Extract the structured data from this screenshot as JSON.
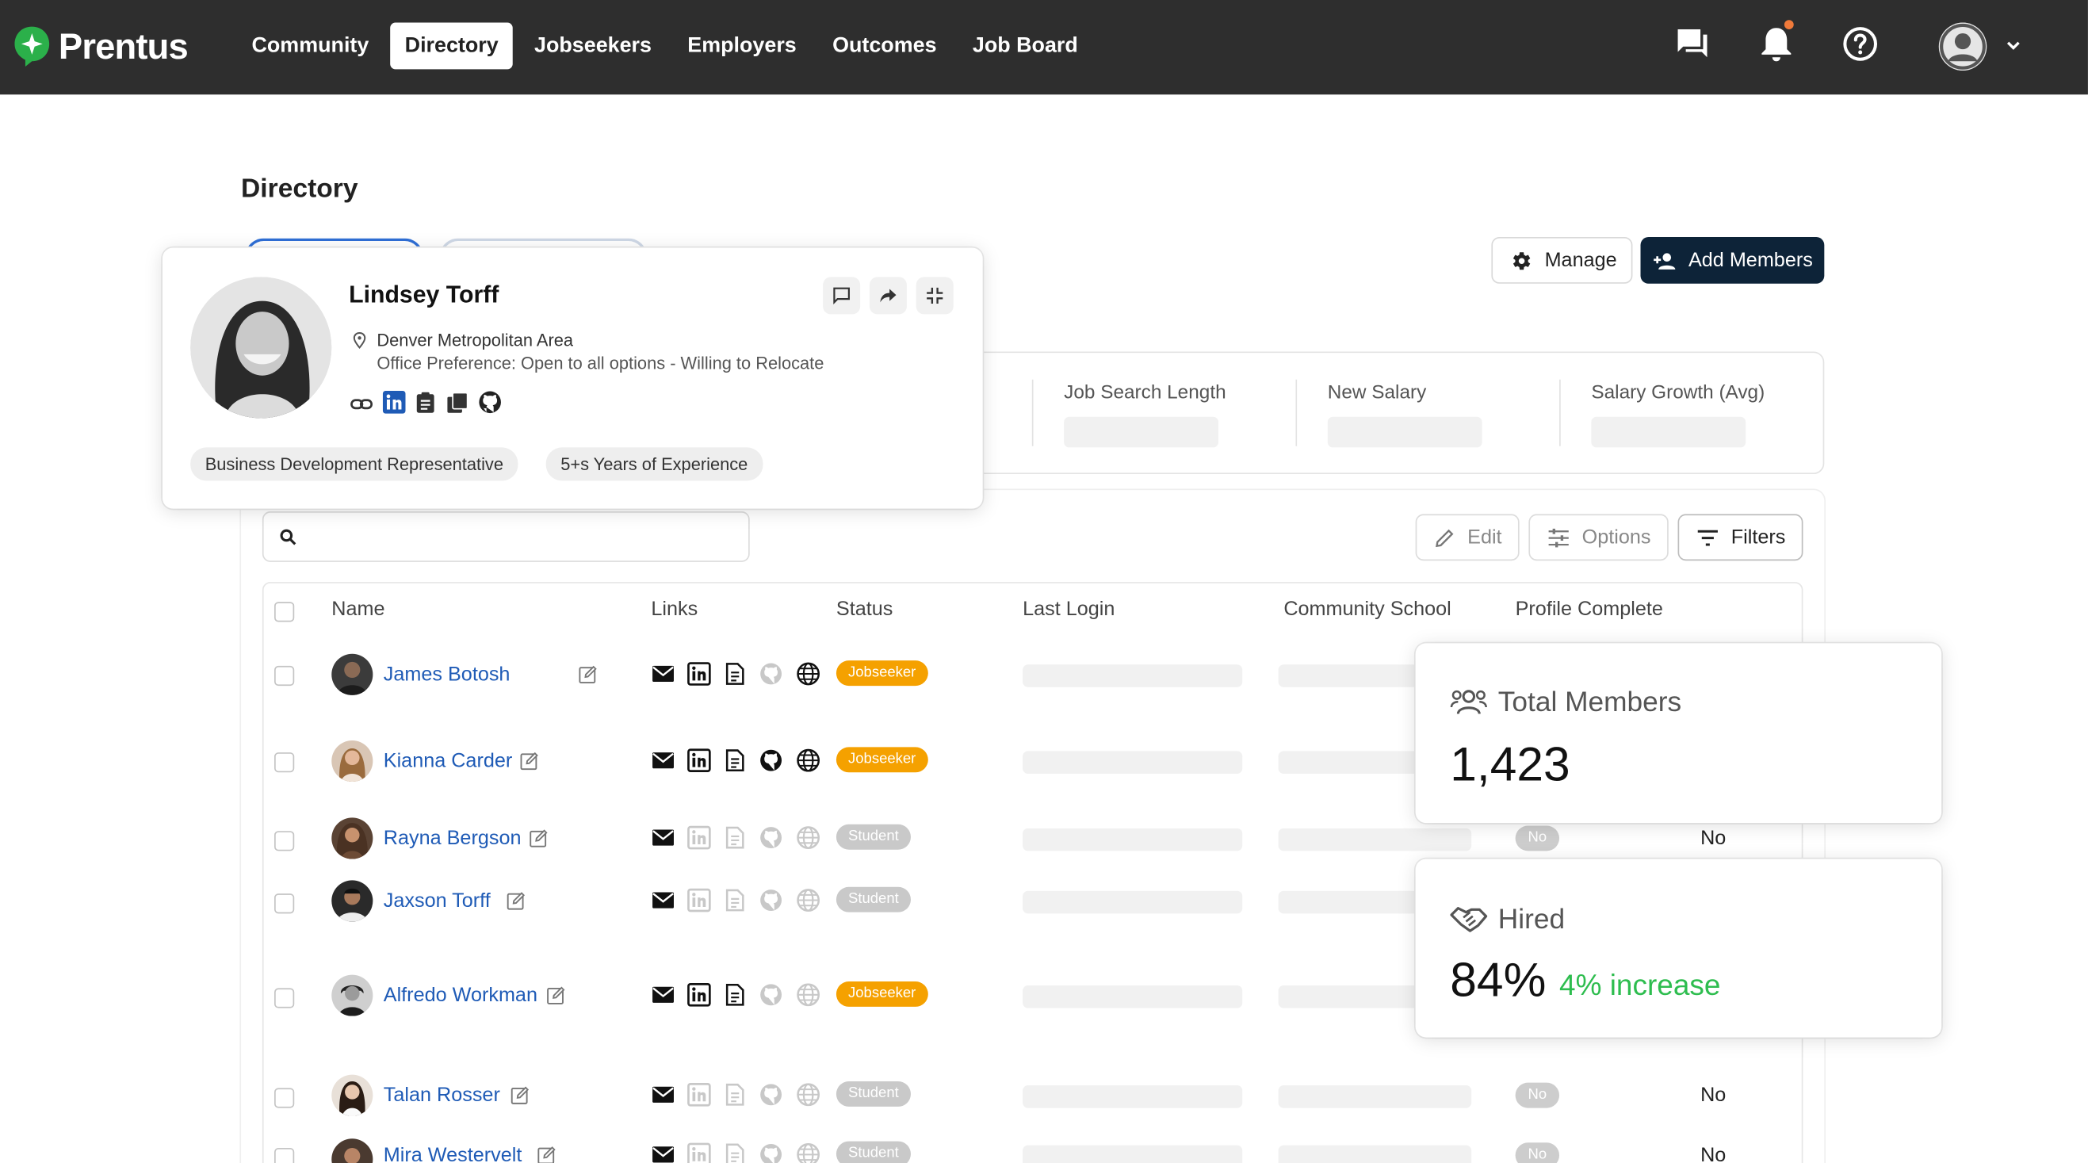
{
  "brand": {
    "name": "Prentus",
    "color": "#2bb04a"
  },
  "nav": [
    {
      "label": "Community"
    },
    {
      "label": "Directory"
    },
    {
      "label": "Jobseekers"
    },
    {
      "label": "Employers"
    },
    {
      "label": "Outcomes"
    },
    {
      "label": "Job Board"
    }
  ],
  "header_icons": [
    "chat-icon",
    "bell-icon",
    "help-icon",
    "user-avatar",
    "chevron-down-icon"
  ],
  "page": {
    "title": "Directory"
  },
  "actions": {
    "manage": "Manage",
    "add_members": "Add Members"
  },
  "stats": {
    "job_search_length": "Job Search Length",
    "new_salary": "New Salary",
    "salary_growth": "Salary Growth (Avg)"
  },
  "search": {
    "placeholder": ""
  },
  "toolbar": {
    "edit": "Edit",
    "options": "Options",
    "filters": "Filters"
  },
  "table": {
    "headers": {
      "name": "Name",
      "links": "Links",
      "status": "Status",
      "last_login": "Last Login",
      "community_school": "Community School",
      "profile_complete": "Profile Complete"
    },
    "rows": [
      {
        "name": "James Botosh",
        "status": "Jobseeker",
        "profile_badge": "",
        "profile_complete": ""
      },
      {
        "name": "Kianna Carder",
        "status": "Jobseeker",
        "profile_badge": "",
        "profile_complete": ""
      },
      {
        "name": "Rayna Bergson",
        "status": "Student",
        "profile_badge": "No",
        "profile_complete": "No"
      },
      {
        "name": "Jaxson Torff",
        "status": "Student",
        "profile_badge": "",
        "profile_complete": ""
      },
      {
        "name": "Alfredo Workman",
        "status": "Jobseeker",
        "profile_badge": "",
        "profile_complete": ""
      },
      {
        "name": "Talan Rosser",
        "status": "Student",
        "profile_badge": "No",
        "profile_complete": "No"
      },
      {
        "name": "Mira Westervelt",
        "status": "Student",
        "profile_badge": "No",
        "profile_complete": "No"
      }
    ]
  },
  "profile_card": {
    "name": "Lindsey Torff",
    "location": "Denver Metropolitan Area",
    "preference": "Office Preference: Open to all options - Willing to Relocate",
    "tags": [
      "Business Development Representative",
      "5+s Years of Experience"
    ]
  },
  "metrics": {
    "total_members": {
      "label": "Total Members",
      "value": "1,423"
    },
    "hired": {
      "label": "Hired",
      "value": "84%",
      "change": "4% increase"
    }
  },
  "colors": {
    "topbar": "#2e2e2e",
    "primary_button": "#0d2338",
    "link": "#1f5bb6",
    "jobseeker_badge": "#f5a100",
    "student_badge": "#c9c9c9",
    "increase": "#2ebd4f"
  }
}
